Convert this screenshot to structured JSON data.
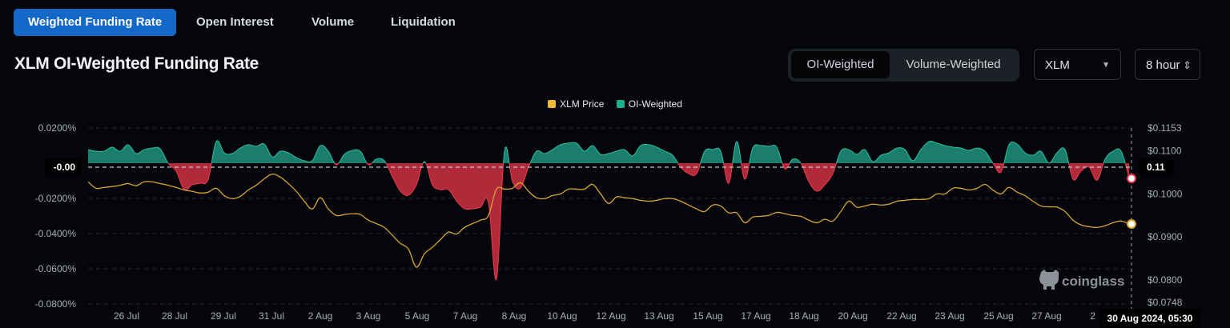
{
  "tabs": [
    {
      "label": "Weighted Funding Rate",
      "active": true
    },
    {
      "label": "Open Interest"
    },
    {
      "label": "Volume"
    },
    {
      "label": "Liquidation"
    }
  ],
  "title": "XLM OI-Weighted Funding Rate",
  "weighting": {
    "options": [
      "OI-Weighted",
      "Volume-Weighted"
    ],
    "selected": "OI-Weighted"
  },
  "symbol_select": {
    "value": "XLM",
    "icon": "caret-down-icon"
  },
  "interval_select": {
    "value": "8 hour",
    "icon": "up-down-chevron-icon"
  },
  "colors": {
    "accent": "#1468c8",
    "positive": "#1b7d6c",
    "positive_line": "#2cc0a0",
    "negative": "#b02a3a",
    "negative_line": "#f0394f",
    "price": "#d9a531",
    "legend_price": "#f0b93a",
    "legend_oi": "#18b38c"
  },
  "watermark": "coinglass",
  "crosshair": {
    "left_label": "-0.00",
    "right_label": "0.11",
    "date_label": "30 Aug 2024, 05:30"
  },
  "chart_data": {
    "type": "area+line",
    "legend": [
      {
        "name": "XLM Price"
      },
      {
        "name": "OI-Weighted"
      }
    ],
    "legend_placement": "top-center",
    "grid": true,
    "y_left": {
      "unit": "%",
      "ylim": [
        -0.08,
        0.02
      ],
      "ticks": [
        "0.0200%",
        "-0.0200%",
        "-0.0400%",
        "-0.0600%",
        "-0.0800%"
      ],
      "tick_values": [
        0.02,
        -0.02,
        -0.04,
        -0.06,
        -0.08
      ]
    },
    "y_right": {
      "unit": "$",
      "ylim": [
        0.0748,
        0.1153
      ],
      "ticks": [
        "$0.1153",
        "$0.1100",
        "$0.1000",
        "$0.0900",
        "$0.0800",
        "$0.0748"
      ],
      "tick_values": [
        0.1153,
        0.11,
        0.1,
        0.09,
        0.08,
        0.0748
      ]
    },
    "x_ticks": [
      {
        "label": "26 Jul",
        "at": 4.8
      },
      {
        "label": "28 Jul",
        "at": 10.8
      },
      {
        "label": "29 Jul",
        "at": 16.9
      },
      {
        "label": "31 Jul",
        "at": 22.9
      },
      {
        "label": "2 Aug",
        "at": 29
      },
      {
        "label": "3 Aug",
        "at": 35
      },
      {
        "label": "5 Aug",
        "at": 41.1
      },
      {
        "label": "7 Aug",
        "at": 47.1
      },
      {
        "label": "8 Aug",
        "at": 53.2
      },
      {
        "label": "10 Aug",
        "at": 59.2
      },
      {
        "label": "12 Aug",
        "at": 65.3
      },
      {
        "label": "13 Aug",
        "at": 71.3
      },
      {
        "label": "15 Aug",
        "at": 77.4
      },
      {
        "label": "17 Aug",
        "at": 83.4
      },
      {
        "label": "18 Aug",
        "at": 89.4
      },
      {
        "label": "20 Aug",
        "at": 95.5
      },
      {
        "label": "22 Aug",
        "at": 101.6
      },
      {
        "label": "23 Aug",
        "at": 107.6
      },
      {
        "label": "25 Aug",
        "at": 113.7
      },
      {
        "label": "27 Aug",
        "at": 119.7
      },
      {
        "label": "2",
        "at": 125.8
      }
    ],
    "series": [
      {
        "name": "OI-Weighted",
        "axis": "left",
        "values": [
          0.0077,
          0.0068,
          0.0068,
          0.0091,
          0.0068,
          0.0105,
          0.0055,
          0.0077,
          0.0086,
          0.0082,
          0,
          -0.0045,
          -0.015,
          -0.0123,
          -0.0114,
          -0.0091,
          0.0123,
          0.0059,
          0.0055,
          0.0086,
          0.0105,
          0.0096,
          0.0109,
          0.0036,
          0.0068,
          0.0059,
          0.0032,
          0.0014,
          0.0014,
          0.01,
          0.0068,
          -0.0009,
          0.005,
          0.0073,
          0.0068,
          -0.0009,
          0.0023,
          0.0014,
          -0.0077,
          -0.0159,
          -0.0182,
          -0.0123,
          0.0009,
          -0.0123,
          -0.015,
          -0.015,
          -0.0214,
          -0.0259,
          -0.0259,
          -0.025,
          -0.0227,
          -0.0659,
          0.0068,
          -0.0105,
          -0.0141,
          -0.0023,
          0.0068,
          0.0055,
          0.0077,
          0.0105,
          0.0114,
          0.0114,
          0.0068,
          0.01,
          0.005,
          0.0055,
          0.0068,
          0.0077,
          0.0041,
          0.01,
          0.0105,
          0.0091,
          0.0068,
          0.0045,
          -0.0023,
          -0.0059,
          -0.0059,
          0.0068,
          0.0077,
          0.0068,
          -0.0114,
          0.0123,
          -0.0091,
          0.0086,
          0.01,
          0.0096,
          0.0091,
          -0.0032,
          0.0023,
          0,
          -0.0105,
          -0.0159,
          -0.0123,
          -0.0059,
          0.0068,
          0.0077,
          0.005,
          0.0077,
          0.0009,
          0.0045,
          0.0059,
          0.0086,
          0.0077,
          0.0014,
          0.0077,
          0.0123,
          0.0114,
          0.01,
          0.0091,
          0.0086,
          0.0073,
          0.0086,
          0.0068,
          0,
          -0.005,
          0.0105,
          0.0109,
          0.0059,
          0.0045,
          0.0068,
          0,
          0.0059,
          0.0077,
          -0.0091,
          -0.0045,
          -0.0023,
          -0.0096,
          0.0023,
          0.0068,
          0.0068,
          -0.0082
        ]
      },
      {
        "name": "XLM Price",
        "axis": "right",
        "values": [
          0.1028,
          0.1013,
          0.1015,
          0.1017,
          0.102,
          0.1024,
          0.1019,
          0.1028,
          0.1028,
          0.1024,
          0.102,
          0.1015,
          0.1009,
          0.1006,
          0.1002,
          0.1004,
          0.1013,
          0.0996,
          0.0989,
          0.0994,
          0.1009,
          0.102,
          0.1035,
          0.1046,
          0.1039,
          0.1024,
          0.1006,
          0.0983,
          0.0965,
          0.0991,
          0.0965,
          0.095,
          0.0952,
          0.0954,
          0.0952,
          0.0939,
          0.0931,
          0.0922,
          0.0904,
          0.0885,
          0.0872,
          0.083,
          0.0861,
          0.0876,
          0.0894,
          0.0911,
          0.0907,
          0.0922,
          0.0931,
          0.0939,
          0.095,
          0.1011,
          0.1011,
          0.1013,
          0.1026,
          0.1006,
          0.0991,
          0.0989,
          0.0996,
          0.1,
          0.1011,
          0.1011,
          0.1011,
          0.1022,
          0.1,
          0.0978,
          0.0993,
          0.0991,
          0.0989,
          0.0985,
          0.0983,
          0.0985,
          0.0989,
          0.0989,
          0.0983,
          0.0974,
          0.0965,
          0.0959,
          0.0974,
          0.0972,
          0.0956,
          0.0956,
          0.0933,
          0.0946,
          0.0948,
          0.095,
          0.0957,
          0.0954,
          0.095,
          0.0948,
          0.0939,
          0.0933,
          0.0941,
          0.0937,
          0.0959,
          0.0983,
          0.0969,
          0.0972,
          0.0976,
          0.0974,
          0.0976,
          0.0983,
          0.0985,
          0.0987,
          0.0987,
          0.0989,
          0.1,
          0.1,
          0.1013,
          0.1013,
          0.1009,
          0.1013,
          0.1022,
          0.1009,
          0.1,
          0.1015,
          0.1004,
          0.0996,
          0.0983,
          0.0972,
          0.097,
          0.0969,
          0.0959,
          0.0939,
          0.0928,
          0.0924,
          0.0922,
          0.0926,
          0.0933,
          0.0937,
          0.093
        ]
      }
    ]
  }
}
